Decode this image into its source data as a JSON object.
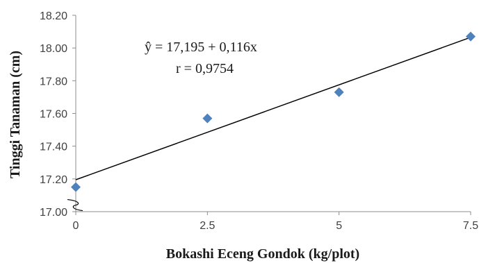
{
  "chart_data": {
    "type": "scatter",
    "xlabel": "Bokashi Eceng Gondok (kg/plot)",
    "ylabel": "Tinggi Tanaman (cm)",
    "x_ticks": [
      "0",
      "2.5",
      "5",
      "7.5"
    ],
    "y_ticks": [
      "17.00",
      "17.20",
      "17.40",
      "17.60",
      "17.80",
      "18.00",
      "18.20"
    ],
    "xlim": [
      0,
      7.5
    ],
    "ylim": [
      17.0,
      18.2
    ],
    "axis_break": true,
    "grid": false,
    "series": [
      {
        "points": [
          {
            "x": 0,
            "y": 17.15
          },
          {
            "x": 2.5,
            "y": 17.57
          },
          {
            "x": 5,
            "y": 17.73
          },
          {
            "x": 7.5,
            "y": 18.07
          }
        ],
        "marker": "diamond",
        "color": "#4f81bd"
      }
    ],
    "trendline": {
      "intercept": 17.195,
      "slope": 0.116,
      "color": "#000000"
    },
    "annotations": [
      "ŷ = 17,195  + 0,116x",
      "r = 0,9754"
    ]
  }
}
